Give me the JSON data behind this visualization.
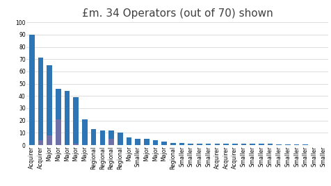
{
  "title": "£m. 34 Operators (out of 70) shown",
  "values": [
    90,
    71,
    65,
    46,
    44,
    39,
    21,
    13,
    12,
    12,
    10,
    6,
    5,
    5,
    4,
    3,
    2,
    2,
    1,
    1,
    1,
    1,
    1,
    1,
    1,
    1,
    1,
    1,
    0.5,
    0.5,
    0.5,
    0.5,
    0.3,
    0.3
  ],
  "secondary_values": [
    0,
    4,
    8,
    21,
    0,
    1,
    0,
    0,
    0,
    5,
    0,
    0,
    0,
    0,
    0,
    0,
    0,
    0,
    0,
    0,
    0,
    0,
    0,
    0,
    0,
    0,
    0,
    0,
    0,
    0,
    0,
    0,
    0,
    0
  ],
  "labels": [
    "Acquirer",
    "Acquirer",
    "Major",
    "Major",
    "Major",
    "Major",
    "Major",
    "Regional",
    "Regional",
    "Regional",
    "Regional",
    "Major",
    "Smaller",
    "Major",
    "Major",
    "Major",
    "Regional",
    "Smaller",
    "Smaller",
    "Smaller",
    "Smaller",
    "Acquirer",
    "Acquirer",
    "Acquirer",
    "Smaller",
    "Smaller",
    "Smaller",
    "Smaller",
    "Smaller",
    "Smaller",
    "Smaller",
    "Smaller",
    "Smaller",
    "Smaller"
  ],
  "primary_color": "#2E75B6",
  "secondary_color": "#7070A8",
  "ylim": [
    0,
    100
  ],
  "yticks": [
    0,
    10,
    20,
    30,
    40,
    50,
    60,
    70,
    80,
    90,
    100
  ],
  "background_color": "#FFFFFF",
  "title_fontsize": 11,
  "tick_label_fontsize": 5.5,
  "grid_color": "#D0D0D0",
  "bar_width": 0.6
}
